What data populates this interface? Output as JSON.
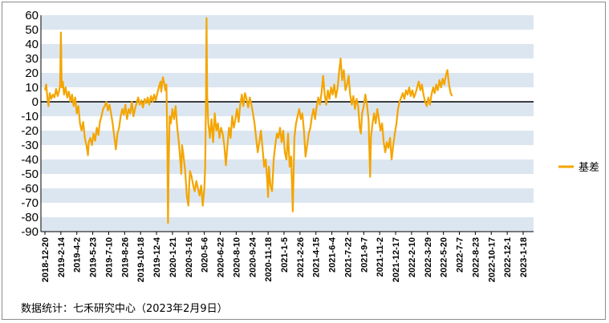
{
  "chart_data": {
    "type": "line",
    "title": "",
    "xlabel": "",
    "ylabel": "",
    "ylim": [
      -90,
      60
    ],
    "ytick_step": 10,
    "grid": "alternating horizontal bands",
    "legend_position": "right",
    "band_color": "#dce6f1",
    "line_color": "#f4a500",
    "zero_line_color": "#000000",
    "x_tick_labels": [
      "2018-12-20",
      "2019-2-14",
      "2019-4-2",
      "2019-5-23",
      "2019-7-10",
      "2019-8-26",
      "2019-10-18",
      "2019-12-4",
      "2020-1-21",
      "2020-3-16",
      "2020-5-6",
      "2020-6-22",
      "2020-8-10",
      "2020-9-24",
      "2020-11-18",
      "2021-1-5",
      "2021-2-26",
      "2021-4-15",
      "2021-6-4",
      "2021-7-22",
      "2021-9-7",
      "2021-11-2",
      "2021-12-17",
      "2022-2-10",
      "2022-3-29",
      "2022-5-20",
      "2022-7-7",
      "2022-8-23",
      "2022-10-17",
      "2022-12-1",
      "2023-1-18"
    ],
    "series": [
      {
        "name": "基差",
        "x_tick_positions": [
          0,
          1,
          2,
          3,
          4,
          5,
          6,
          7,
          8,
          9,
          10,
          11,
          12,
          13,
          14,
          15,
          16,
          17,
          18,
          19,
          20,
          21,
          22,
          23,
          24,
          25,
          26,
          27,
          28,
          29,
          30
        ],
        "points": [
          [
            0.0,
            8
          ],
          [
            0.08,
            12
          ],
          [
            0.15,
            3
          ],
          [
            0.22,
            -3
          ],
          [
            0.3,
            6
          ],
          [
            0.4,
            2
          ],
          [
            0.5,
            5
          ],
          [
            0.6,
            3
          ],
          [
            0.7,
            9
          ],
          [
            0.8,
            4
          ],
          [
            0.9,
            8
          ],
          [
            0.95,
            12
          ],
          [
            1.0,
            48
          ],
          [
            1.05,
            10
          ],
          [
            1.12,
            14
          ],
          [
            1.2,
            5
          ],
          [
            1.3,
            10
          ],
          [
            1.4,
            3
          ],
          [
            1.5,
            7
          ],
          [
            1.6,
            0
          ],
          [
            1.7,
            5
          ],
          [
            1.8,
            -3
          ],
          [
            1.9,
            3
          ],
          [
            2.0,
            -8
          ],
          [
            2.1,
            -3
          ],
          [
            2.2,
            -15
          ],
          [
            2.3,
            -20
          ],
          [
            2.4,
            -14
          ],
          [
            2.5,
            -25
          ],
          [
            2.6,
            -30
          ],
          [
            2.7,
            -37
          ],
          [
            2.75,
            -28
          ],
          [
            2.85,
            -25
          ],
          [
            2.95,
            -30
          ],
          [
            3.05,
            -22
          ],
          [
            3.15,
            -27
          ],
          [
            3.25,
            -18
          ],
          [
            3.35,
            -23
          ],
          [
            3.45,
            -14
          ],
          [
            3.55,
            -10
          ],
          [
            3.65,
            -5
          ],
          [
            3.75,
            -3
          ],
          [
            3.85,
            0
          ],
          [
            3.95,
            -6
          ],
          [
            4.05,
            -2
          ],
          [
            4.15,
            -8
          ],
          [
            4.25,
            -15
          ],
          [
            4.35,
            -24
          ],
          [
            4.45,
            -33
          ],
          [
            4.55,
            -22
          ],
          [
            4.65,
            -18
          ],
          [
            4.75,
            -10
          ],
          [
            4.85,
            -5
          ],
          [
            4.95,
            -9
          ],
          [
            5.05,
            -2
          ],
          [
            5.15,
            -12
          ],
          [
            5.25,
            -5
          ],
          [
            5.35,
            -8
          ],
          [
            5.45,
            0
          ],
          [
            5.55,
            -10
          ],
          [
            5.65,
            -5
          ],
          [
            5.75,
            -1
          ],
          [
            5.85,
            3
          ],
          [
            5.95,
            -2
          ],
          [
            6.05,
            1
          ],
          [
            6.15,
            -4
          ],
          [
            6.25,
            2
          ],
          [
            6.35,
            -1
          ],
          [
            6.45,
            3
          ],
          [
            6.55,
            -2
          ],
          [
            6.65,
            4
          ],
          [
            6.75,
            0
          ],
          [
            6.85,
            5
          ],
          [
            6.95,
            1
          ],
          [
            7.05,
            6
          ],
          [
            7.15,
            10
          ],
          [
            7.25,
            14
          ],
          [
            7.3,
            7
          ],
          [
            7.4,
            17
          ],
          [
            7.5,
            12
          ],
          [
            7.55,
            8
          ],
          [
            7.62,
            12
          ],
          [
            7.68,
            -30
          ],
          [
            7.72,
            -84
          ],
          [
            7.76,
            -45
          ],
          [
            7.82,
            -10
          ],
          [
            7.9,
            -15
          ],
          [
            8.0,
            -5
          ],
          [
            8.1,
            -12
          ],
          [
            8.2,
            -3
          ],
          [
            8.3,
            -18
          ],
          [
            8.4,
            -28
          ],
          [
            8.5,
            -42
          ],
          [
            8.55,
            -50
          ],
          [
            8.6,
            -30
          ],
          [
            8.7,
            -38
          ],
          [
            8.8,
            -48
          ],
          [
            8.9,
            -65
          ],
          [
            9.0,
            -72
          ],
          [
            9.05,
            -58
          ],
          [
            9.1,
            -48
          ],
          [
            9.2,
            -52
          ],
          [
            9.3,
            -58
          ],
          [
            9.4,
            -62
          ],
          [
            9.5,
            -55
          ],
          [
            9.6,
            -60
          ],
          [
            9.7,
            -65
          ],
          [
            9.8,
            -58
          ],
          [
            9.9,
            -72
          ],
          [
            10.0,
            -60
          ],
          [
            10.05,
            -45
          ],
          [
            10.1,
            0
          ],
          [
            10.14,
            58
          ],
          [
            10.18,
            5
          ],
          [
            10.25,
            -15
          ],
          [
            10.35,
            -25
          ],
          [
            10.45,
            -12
          ],
          [
            10.55,
            -28
          ],
          [
            10.65,
            -8
          ],
          [
            10.75,
            -20
          ],
          [
            10.85,
            -15
          ],
          [
            10.95,
            -25
          ],
          [
            11.05,
            -18
          ],
          [
            11.15,
            -22
          ],
          [
            11.25,
            -30
          ],
          [
            11.35,
            -44
          ],
          [
            11.45,
            -30
          ],
          [
            11.55,
            -18
          ],
          [
            11.65,
            -25
          ],
          [
            11.75,
            -10
          ],
          [
            11.85,
            -18
          ],
          [
            11.95,
            -12
          ],
          [
            12.05,
            -5
          ],
          [
            12.15,
            -14
          ],
          [
            12.25,
            -2
          ],
          [
            12.35,
            5
          ],
          [
            12.45,
            -3
          ],
          [
            12.55,
            6
          ],
          [
            12.65,
            2
          ],
          [
            12.75,
            -4
          ],
          [
            12.85,
            3
          ],
          [
            12.95,
            -2
          ],
          [
            13.05,
            -8
          ],
          [
            13.15,
            -15
          ],
          [
            13.25,
            -25
          ],
          [
            13.35,
            -35
          ],
          [
            13.45,
            -28
          ],
          [
            13.55,
            -20
          ],
          [
            13.65,
            -32
          ],
          [
            13.75,
            -45
          ],
          [
            13.85,
            -40
          ],
          [
            13.95,
            -55
          ],
          [
            14.0,
            -66
          ],
          [
            14.05,
            -45
          ],
          [
            14.15,
            -58
          ],
          [
            14.25,
            -62
          ],
          [
            14.35,
            -40
          ],
          [
            14.45,
            -30
          ],
          [
            14.55,
            -22
          ],
          [
            14.65,
            -25
          ],
          [
            14.75,
            -18
          ],
          [
            14.85,
            -28
          ],
          [
            14.95,
            -20
          ],
          [
            15.05,
            -35
          ],
          [
            15.15,
            -40
          ],
          [
            15.25,
            -22
          ],
          [
            15.35,
            -45
          ],
          [
            15.45,
            -38
          ],
          [
            15.55,
            -76
          ],
          [
            15.65,
            -25
          ],
          [
            15.75,
            -15
          ],
          [
            15.85,
            -10
          ],
          [
            15.95,
            -5
          ],
          [
            16.05,
            -12
          ],
          [
            16.15,
            -8
          ],
          [
            16.25,
            -20
          ],
          [
            16.35,
            -38
          ],
          [
            16.45,
            -30
          ],
          [
            16.55,
            -22
          ],
          [
            16.65,
            -18
          ],
          [
            16.75,
            -10
          ],
          [
            16.85,
            -5
          ],
          [
            16.95,
            -12
          ],
          [
            17.05,
            -3
          ],
          [
            17.15,
            3
          ],
          [
            17.25,
            -2
          ],
          [
            17.35,
            6
          ],
          [
            17.45,
            18
          ],
          [
            17.55,
            5
          ],
          [
            17.65,
            -2
          ],
          [
            17.75,
            8
          ],
          [
            17.85,
            2
          ],
          [
            17.95,
            10
          ],
          [
            18.05,
            5
          ],
          [
            18.15,
            12
          ],
          [
            18.25,
            3
          ],
          [
            18.35,
            9
          ],
          [
            18.45,
            20
          ],
          [
            18.55,
            30
          ],
          [
            18.65,
            15
          ],
          [
            18.75,
            22
          ],
          [
            18.85,
            8
          ],
          [
            18.95,
            12
          ],
          [
            19.05,
            18
          ],
          [
            19.15,
            5
          ],
          [
            19.25,
            -2
          ],
          [
            19.35,
            4
          ],
          [
            19.45,
            -5
          ],
          [
            19.55,
            2
          ],
          [
            19.65,
            -3
          ],
          [
            19.75,
            -18
          ],
          [
            19.82,
            -22
          ],
          [
            19.9,
            -8
          ],
          [
            20.0,
            -3
          ],
          [
            20.1,
            5
          ],
          [
            20.2,
            -2
          ],
          [
            20.3,
            -12
          ],
          [
            20.4,
            -52
          ],
          [
            20.45,
            -25
          ],
          [
            20.55,
            -15
          ],
          [
            20.65,
            -8
          ],
          [
            20.75,
            -15
          ],
          [
            20.85,
            -5
          ],
          [
            20.95,
            -12
          ],
          [
            21.05,
            -20
          ],
          [
            21.15,
            -15
          ],
          [
            21.25,
            -28
          ],
          [
            21.35,
            -35
          ],
          [
            21.45,
            -28
          ],
          [
            21.55,
            -32
          ],
          [
            21.65,
            -25
          ],
          [
            21.75,
            -40
          ],
          [
            21.85,
            -30
          ],
          [
            21.95,
            -22
          ],
          [
            22.05,
            -15
          ],
          [
            22.15,
            -5
          ],
          [
            22.25,
            0
          ],
          [
            22.35,
            3
          ],
          [
            22.45,
            6
          ],
          [
            22.55,
            2
          ],
          [
            22.65,
            8
          ],
          [
            22.75,
            5
          ],
          [
            22.85,
            10
          ],
          [
            22.95,
            4
          ],
          [
            23.05,
            8
          ],
          [
            23.15,
            3
          ],
          [
            23.25,
            6
          ],
          [
            23.35,
            10
          ],
          [
            23.45,
            14
          ],
          [
            23.55,
            8
          ],
          [
            23.65,
            12
          ],
          [
            23.75,
            5
          ],
          [
            23.85,
            0
          ],
          [
            23.95,
            -3
          ],
          [
            24.05,
            3
          ],
          [
            24.15,
            -2
          ],
          [
            24.25,
            5
          ],
          [
            24.35,
            10
          ],
          [
            24.45,
            6
          ],
          [
            24.55,
            12
          ],
          [
            24.65,
            8
          ],
          [
            24.75,
            15
          ],
          [
            24.85,
            10
          ],
          [
            24.95,
            16
          ],
          [
            25.05,
            12
          ],
          [
            25.15,
            18
          ],
          [
            25.25,
            22
          ],
          [
            25.35,
            12
          ],
          [
            25.45,
            6
          ],
          [
            25.55,
            4
          ]
        ]
      }
    ],
    "source_note": "数据统计：七禾研究中心（2023年2月9日）"
  }
}
